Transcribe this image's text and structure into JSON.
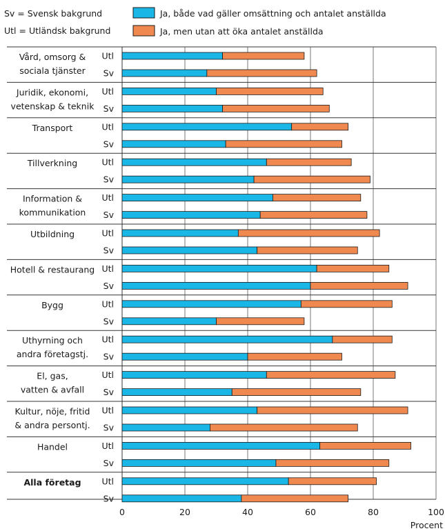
{
  "legend": {
    "abbreviations": [
      {
        "text": "Sv = Svensk bakgrund"
      },
      {
        "text": "Utl = Utländsk bakgrund"
      }
    ],
    "items": [
      {
        "label": "Ja, både vad gäller omsättning och antalet anställda",
        "color": "#1ab6e6"
      },
      {
        "label": "Ja, men utan att öka antalet anställda",
        "color": "#f0894f"
      }
    ]
  },
  "chart_data": {
    "type": "bar",
    "orientation": "horizontal",
    "stacked": true,
    "xlabel": "Procent",
    "xlim": [
      0,
      100
    ],
    "xticks": [
      0,
      20,
      40,
      60,
      80,
      100
    ],
    "grid": true,
    "legend_position": "top",
    "series": [
      {
        "name": "Ja, både vad gäller omsättning och antalet anställda",
        "color": "#1ab6e6"
      },
      {
        "name": "Ja, men utan att öka antalet anställda",
        "color": "#f0894f"
      }
    ],
    "groups": [
      {
        "label": [
          "Vård, omsorg &",
          "sociala tjänster"
        ],
        "bold": false,
        "rows": [
          {
            "label": "Utl",
            "values": [
              32,
              26
            ]
          },
          {
            "label": "Sv",
            "values": [
              27,
              35
            ]
          }
        ]
      },
      {
        "label": [
          "Juridik, ekonomi,",
          "vetenskap & teknik"
        ],
        "bold": false,
        "rows": [
          {
            "label": "Utl",
            "values": [
              30,
              34
            ]
          },
          {
            "label": "Sv",
            "values": [
              32,
              34
            ]
          }
        ]
      },
      {
        "label": [
          "Transport"
        ],
        "bold": false,
        "rows": [
          {
            "label": "Utl",
            "values": [
              54,
              18
            ]
          },
          {
            "label": "Sv",
            "values": [
              33,
              37
            ]
          }
        ]
      },
      {
        "label": [
          "Tillverkning"
        ],
        "bold": false,
        "rows": [
          {
            "label": "Utl",
            "values": [
              46,
              27
            ]
          },
          {
            "label": "Sv",
            "values": [
              42,
              37
            ]
          }
        ]
      },
      {
        "label": [
          "Information &",
          "kommunikation"
        ],
        "bold": false,
        "rows": [
          {
            "label": "Utl",
            "values": [
              48,
              28
            ]
          },
          {
            "label": "Sv",
            "values": [
              44,
              34
            ]
          }
        ]
      },
      {
        "label": [
          "Utbildning"
        ],
        "bold": false,
        "rows": [
          {
            "label": "Utl",
            "values": [
              37,
              45
            ]
          },
          {
            "label": "Sv",
            "values": [
              43,
              32
            ]
          }
        ]
      },
      {
        "label": [
          "Hotell & restaurang"
        ],
        "bold": false,
        "rows": [
          {
            "label": "Utl",
            "values": [
              62,
              23
            ]
          },
          {
            "label": "Sv",
            "values": [
              60,
              31
            ]
          }
        ]
      },
      {
        "label": [
          "Bygg"
        ],
        "bold": false,
        "rows": [
          {
            "label": "Utl",
            "values": [
              57,
              29
            ]
          },
          {
            "label": "Sv",
            "values": [
              30,
              28
            ]
          }
        ]
      },
      {
        "label": [
          "Uthyrning och",
          "andra företagstj."
        ],
        "bold": false,
        "rows": [
          {
            "label": "Utl",
            "values": [
              67,
              19
            ]
          },
          {
            "label": "Sv",
            "values": [
              40,
              30
            ]
          }
        ]
      },
      {
        "label": [
          "El, gas,",
          "vatten & avfall"
        ],
        "bold": false,
        "rows": [
          {
            "label": "Utl",
            "values": [
              46,
              41
            ]
          },
          {
            "label": "Sv",
            "values": [
              35,
              41
            ]
          }
        ]
      },
      {
        "label": [
          "Kultur, nöje, fritid",
          "& andra persontj."
        ],
        "bold": false,
        "rows": [
          {
            "label": "Utl",
            "values": [
              43,
              48
            ]
          },
          {
            "label": "Sv",
            "values": [
              28,
              47
            ]
          }
        ]
      },
      {
        "label": [
          "Handel"
        ],
        "bold": false,
        "rows": [
          {
            "label": "Utl",
            "values": [
              63,
              29
            ]
          },
          {
            "label": "Sv",
            "values": [
              49,
              36
            ]
          }
        ]
      },
      {
        "label": [
          "Alla företag"
        ],
        "bold": true,
        "rows": [
          {
            "label": "Utl",
            "values": [
              53,
              28
            ]
          },
          {
            "label": "Sv",
            "values": [
              38,
              34
            ]
          }
        ]
      }
    ]
  }
}
